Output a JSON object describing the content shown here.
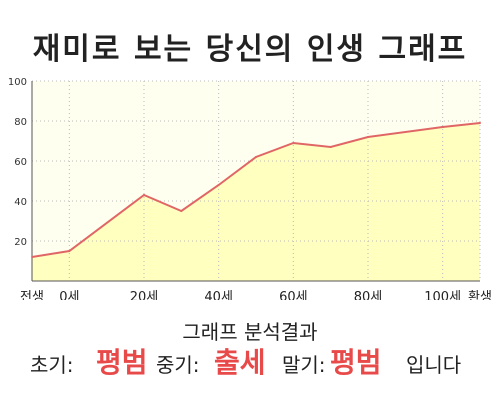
{
  "title": "재미로 보는 당신의 인생 그래프",
  "analysis": {
    "heading": "그래프 분석결과",
    "early_label": "초기:",
    "early_value": "평범",
    "middle_label": "중기:",
    "middle_value": "출세",
    "late_label": "말기:",
    "late_value": "평범",
    "ending": "입니다"
  },
  "colors": {
    "line": "#e06666",
    "fill": "#ffffc0",
    "plot_bg": "#fffff0",
    "highlight": "#e84a4a"
  },
  "chart_data": {
    "type": "area",
    "title": "",
    "xlabel": "",
    "ylabel": "",
    "x": [
      -10,
      0,
      20,
      30,
      40,
      50,
      60,
      70,
      80,
      100,
      110
    ],
    "y": [
      12,
      15,
      43,
      35,
      48,
      62,
      69,
      67,
      72,
      77,
      79
    ],
    "xlim": [
      -10,
      110
    ],
    "ylim": [
      0,
      100
    ],
    "x_ticks": [
      {
        "value": -10,
        "label": "전생"
      },
      {
        "value": 0,
        "label": "0세"
      },
      {
        "value": 20,
        "label": "20세"
      },
      {
        "value": 40,
        "label": "40세"
      },
      {
        "value": 60,
        "label": "60세"
      },
      {
        "value": 80,
        "label": "80세"
      },
      {
        "value": 100,
        "label": "100세"
      },
      {
        "value": 110,
        "label": "환생"
      }
    ],
    "y_ticks": [
      20,
      40,
      60,
      80,
      100
    ],
    "grid": true
  }
}
